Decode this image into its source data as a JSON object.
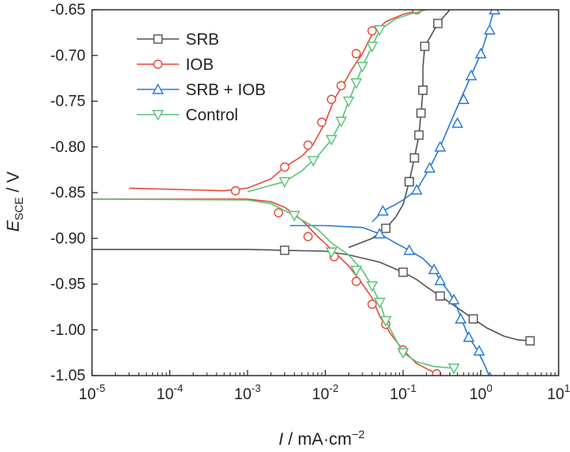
{
  "chart_data": {
    "type": "line",
    "x_scale": "log",
    "xlim": [
      1e-05,
      10
    ],
    "ylim": [
      -1.05,
      -0.65
    ],
    "xlabel": {
      "italic": "I",
      "rest": " / mA·cm",
      "sup": "−2"
    },
    "ylabel": {
      "italic": "E",
      "sub": "SCE",
      "rest": " / V"
    },
    "x_ticks": [
      {
        "value": 1e-05,
        "base": "10",
        "exp": "-5"
      },
      {
        "value": 0.0001,
        "base": "10",
        "exp": "-4"
      },
      {
        "value": 0.001,
        "base": "10",
        "exp": "-3"
      },
      {
        "value": 0.01,
        "base": "10",
        "exp": "-2"
      },
      {
        "value": 0.1,
        "base": "10",
        "exp": "-1"
      },
      {
        "value": 1,
        "base": "10",
        "exp": "0"
      },
      {
        "value": 10,
        "base": "10",
        "exp": "1"
      }
    ],
    "y_ticks": [
      {
        "value": -0.65,
        "label": "-0.65"
      },
      {
        "value": -0.7,
        "label": "-0.70"
      },
      {
        "value": -0.75,
        "label": "-0.75"
      },
      {
        "value": -0.8,
        "label": "-0.80"
      },
      {
        "value": -0.85,
        "label": "-0.85"
      },
      {
        "value": -0.9,
        "label": "-0.90"
      },
      {
        "value": -0.95,
        "label": "-0.95"
      },
      {
        "value": -1.0,
        "label": "-1.00"
      },
      {
        "value": -1.05,
        "label": "-1.05"
      }
    ],
    "legend_position": "top-left",
    "series": [
      {
        "name": "SRB",
        "color": "#555555",
        "marker": "square",
        "points": [
          [
            1e-05,
            -0.912
          ],
          [
            0.0001,
            -0.912
          ],
          [
            0.001,
            -0.912
          ],
          [
            0.003,
            -0.913
          ],
          [
            0.01,
            -0.914
          ],
          [
            0.02,
            -0.918
          ],
          [
            0.05,
            -0.926
          ],
          [
            0.1,
            -0.937
          ],
          [
            0.15,
            -0.945
          ],
          [
            0.2,
            -0.953
          ],
          [
            0.3,
            -0.963
          ],
          [
            0.5,
            -0.976
          ],
          [
            0.8,
            -0.988
          ],
          [
            1.2,
            -0.998
          ],
          [
            2,
            -1.007
          ],
          [
            3,
            -1.011
          ],
          [
            4.3,
            -1.012
          ]
        ],
        "anodic": [
          [
            0.02,
            -0.91
          ],
          [
            0.04,
            -0.9
          ],
          [
            0.06,
            -0.889
          ],
          [
            0.08,
            -0.877
          ],
          [
            0.1,
            -0.863
          ],
          [
            0.12,
            -0.838
          ],
          [
            0.14,
            -0.812
          ],
          [
            0.16,
            -0.787
          ],
          [
            0.17,
            -0.763
          ],
          [
            0.18,
            -0.738
          ],
          [
            0.18,
            -0.713
          ],
          [
            0.19,
            -0.69
          ],
          [
            0.23,
            -0.678
          ],
          [
            0.28,
            -0.665
          ],
          [
            0.4,
            -0.65
          ]
        ],
        "markers_x": [
          0.004,
          0.11,
          0.3,
          0.8,
          4.3,
          0.055,
          0.09,
          0.12,
          0.14,
          0.16,
          0.17,
          0.18,
          0.18,
          0.19,
          0.28
        ]
      },
      {
        "name": "IOB",
        "color": "#e74c3c",
        "marker": "circle",
        "cathodic": [
          [
            1e-05,
            -0.857
          ],
          [
            0.001,
            -0.857
          ],
          [
            0.002,
            -0.86
          ],
          [
            0.003,
            -0.866
          ],
          [
            0.005,
            -0.88
          ],
          [
            0.008,
            -0.898
          ],
          [
            0.012,
            -0.912
          ],
          [
            0.02,
            -0.93
          ],
          [
            0.03,
            -0.95
          ],
          [
            0.04,
            -0.965
          ],
          [
            0.05,
            -0.985
          ],
          [
            0.07,
            -1.005
          ],
          [
            0.1,
            -1.022
          ],
          [
            0.15,
            -1.037
          ],
          [
            0.27,
            -1.048
          ]
        ],
        "anodic": [
          [
            3e-05,
            -0.845
          ],
          [
            0.0005,
            -0.848
          ],
          [
            0.001,
            -0.845
          ],
          [
            0.002,
            -0.835
          ],
          [
            0.003,
            -0.822
          ],
          [
            0.005,
            -0.81
          ],
          [
            0.007,
            -0.797
          ],
          [
            0.01,
            -0.773
          ],
          [
            0.013,
            -0.748
          ],
          [
            0.017,
            -0.732
          ],
          [
            0.022,
            -0.715
          ],
          [
            0.03,
            -0.698
          ],
          [
            0.04,
            -0.677
          ],
          [
            0.06,
            -0.663
          ],
          [
            0.1,
            -0.655
          ],
          [
            0.17,
            -0.65
          ]
        ],
        "marker_points": [
          [
            0.0007,
            -0.848
          ],
          [
            0.003,
            -0.822
          ],
          [
            0.006,
            -0.798
          ],
          [
            0.009,
            -0.773
          ],
          [
            0.012,
            -0.748
          ],
          [
            0.016,
            -0.733
          ],
          [
            0.025,
            -0.698
          ],
          [
            0.04,
            -0.673
          ],
          [
            0.15,
            -0.65
          ],
          [
            0.0025,
            -0.872
          ],
          [
            0.006,
            -0.898
          ],
          [
            0.013,
            -0.92
          ],
          [
            0.025,
            -0.947
          ],
          [
            0.04,
            -0.972
          ],
          [
            0.06,
            -0.994
          ],
          [
            0.1,
            -1.022
          ],
          [
            0.27,
            -1.048
          ]
        ]
      },
      {
        "name": "SRB + IOB",
        "color": "#2b7bd6",
        "marker": "triangle-up",
        "cathodic": [
          [
            0.0035,
            -0.886
          ],
          [
            0.01,
            -0.886
          ],
          [
            0.03,
            -0.888
          ],
          [
            0.05,
            -0.895
          ],
          [
            0.08,
            -0.905
          ],
          [
            0.12,
            -0.913
          ],
          [
            0.18,
            -0.922
          ],
          [
            0.25,
            -0.934
          ],
          [
            0.3,
            -0.946
          ],
          [
            0.4,
            -0.96
          ],
          [
            0.5,
            -0.977
          ],
          [
            0.6,
            -0.994
          ],
          [
            0.7,
            -1.008
          ],
          [
            0.9,
            -1.022
          ],
          [
            1.1,
            -1.037
          ],
          [
            1.3,
            -1.052
          ]
        ],
        "anodic": [
          [
            0.04,
            -0.882
          ],
          [
            0.055,
            -0.87
          ],
          [
            0.08,
            -0.863
          ],
          [
            0.1,
            -0.858
          ],
          [
            0.15,
            -0.847
          ],
          [
            0.22,
            -0.823
          ],
          [
            0.3,
            -0.8
          ],
          [
            0.4,
            -0.775
          ],
          [
            0.55,
            -0.748
          ],
          [
            0.75,
            -0.722
          ],
          [
            1.0,
            -0.698
          ],
          [
            1.25,
            -0.672
          ],
          [
            1.45,
            -0.652
          ]
        ],
        "marker_points": [
          [
            0.055,
            -0.87
          ],
          [
            0.15,
            -0.847
          ],
          [
            0.22,
            -0.823
          ],
          [
            0.3,
            -0.8
          ],
          [
            0.5,
            -0.774
          ],
          [
            0.6,
            -0.748
          ],
          [
            0.75,
            -0.722
          ],
          [
            1.0,
            -0.698
          ],
          [
            1.3,
            -0.672
          ],
          [
            1.5,
            -0.65
          ],
          [
            0.05,
            -0.895
          ],
          [
            0.12,
            -0.913
          ],
          [
            0.25,
            -0.934
          ],
          [
            0.3,
            -0.946
          ],
          [
            0.45,
            -0.967
          ],
          [
            0.55,
            -0.988
          ],
          [
            0.7,
            -1.008
          ],
          [
            0.95,
            -1.023
          ],
          [
            1.3,
            -1.052
          ]
        ]
      },
      {
        "name": "Control",
        "color": "#5cc47a",
        "marker": "triangle-down",
        "cathodic": [
          [
            1e-05,
            -0.857
          ],
          [
            0.001,
            -0.858
          ],
          [
            0.002,
            -0.862
          ],
          [
            0.004,
            -0.875
          ],
          [
            0.008,
            -0.89
          ],
          [
            0.012,
            -0.905
          ],
          [
            0.02,
            -0.918
          ],
          [
            0.03,
            -0.935
          ],
          [
            0.04,
            -0.952
          ],
          [
            0.05,
            -0.97
          ],
          [
            0.06,
            -0.99
          ],
          [
            0.08,
            -1.01
          ],
          [
            0.1,
            -1.025
          ],
          [
            0.15,
            -1.035
          ],
          [
            0.25,
            -1.04
          ],
          [
            0.45,
            -1.042
          ]
        ],
        "anodic": [
          [
            0.001,
            -0.849
          ],
          [
            0.002,
            -0.842
          ],
          [
            0.003,
            -0.838
          ],
          [
            0.005,
            -0.826
          ],
          [
            0.008,
            -0.81
          ],
          [
            0.012,
            -0.792
          ],
          [
            0.016,
            -0.772
          ],
          [
            0.02,
            -0.75
          ],
          [
            0.025,
            -0.73
          ],
          [
            0.03,
            -0.712
          ],
          [
            0.04,
            -0.69
          ],
          [
            0.05,
            -0.672
          ],
          [
            0.08,
            -0.66
          ],
          [
            0.12,
            -0.655
          ],
          [
            0.2,
            -0.65
          ]
        ],
        "marker_points": [
          [
            0.003,
            -0.838
          ],
          [
            0.007,
            -0.815
          ],
          [
            0.012,
            -0.792
          ],
          [
            0.016,
            -0.772
          ],
          [
            0.02,
            -0.75
          ],
          [
            0.025,
            -0.73
          ],
          [
            0.03,
            -0.712
          ],
          [
            0.04,
            -0.69
          ],
          [
            0.05,
            -0.672
          ],
          [
            0.004,
            -0.875
          ],
          [
            0.012,
            -0.915
          ],
          [
            0.025,
            -0.935
          ],
          [
            0.04,
            -0.952
          ],
          [
            0.05,
            -0.97
          ],
          [
            0.06,
            -0.99
          ],
          [
            0.1,
            -1.025
          ],
          [
            0.45,
            -1.042
          ]
        ]
      }
    ]
  }
}
